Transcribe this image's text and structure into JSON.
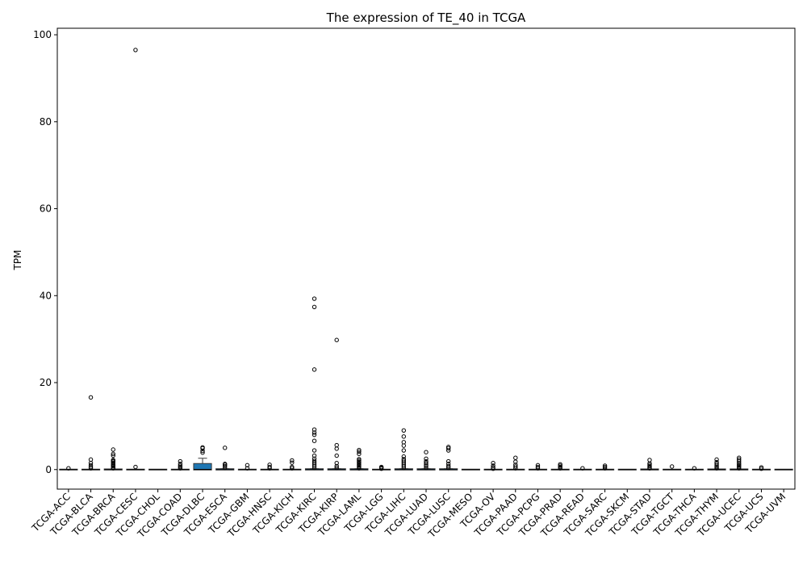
{
  "chart_data": {
    "type": "box",
    "title": "The expression of TE_40 in TCGA",
    "xlabel": "",
    "ylabel": "TPM",
    "ylim": [
      -4.5,
      101.5
    ],
    "yticks": [
      0,
      20,
      40,
      60,
      80,
      100
    ],
    "grid": false,
    "legend": "none",
    "categories": [
      "TCGA-ACC",
      "TCGA-BLCA",
      "TCGA-BRCA",
      "TCGA-CESC",
      "TCGA-CHOL",
      "TCGA-COAD",
      "TCGA-DLBC",
      "TCGA-ESCA",
      "TCGA-GBM",
      "TCGA-HNSC",
      "TCGA-KICH",
      "TCGA-KIRC",
      "TCGA-KIRP",
      "TCGA-LAML",
      "TCGA-LGG",
      "TCGA-LIHC",
      "TCGA-LUAD",
      "TCGA-LUSC",
      "TCGA-MESO",
      "TCGA-OV",
      "TCGA-PAAD",
      "TCGA-PCPG",
      "TCGA-PRAD",
      "TCGA-READ",
      "TCGA-SARC",
      "TCGA-SKCM",
      "TCGA-STAD",
      "TCGA-TGCT",
      "TCGA-THCA",
      "TCGA-THYM",
      "TCGA-UCEC",
      "TCGA-UCS",
      "TCGA-UVM"
    ],
    "boxes": [
      {
        "q1": 0,
        "median": 0,
        "q3": 0,
        "whislo": 0,
        "whishi": 0,
        "fliers": [
          0.3
        ]
      },
      {
        "q1": 0,
        "median": 0,
        "q3": 0,
        "whislo": 0,
        "whishi": 0,
        "fliers": [
          0.3,
          0.6,
          1.0,
          1.5,
          2.3,
          16.6
        ]
      },
      {
        "q1": 0,
        "median": 0,
        "q3": 0.05,
        "whislo": 0,
        "whishi": 0.1,
        "fliers": [
          0.3,
          0.5,
          0.8,
          1.0,
          1.2,
          1.5,
          1.8,
          2.0,
          2.2,
          3.2,
          3.6,
          4.6
        ]
      },
      {
        "q1": 0,
        "median": 0,
        "q3": 0,
        "whislo": 0,
        "whishi": 0,
        "fliers": [
          0.6,
          96.5
        ]
      },
      {
        "q1": 0,
        "median": 0,
        "q3": 0,
        "whislo": 0,
        "whishi": 0,
        "fliers": []
      },
      {
        "q1": 0,
        "median": 0,
        "q3": 0,
        "whislo": 0,
        "whishi": 0,
        "fliers": [
          0.3,
          0.6,
          0.9,
          1.3,
          1.9
        ]
      },
      {
        "q1": 0,
        "median": 0.05,
        "q3": 1.3,
        "whislo": 0,
        "whishi": 2.6,
        "fliers": [
          3.9,
          4.3,
          4.9,
          5.1
        ]
      },
      {
        "q1": 0,
        "median": 0,
        "q3": 0.1,
        "whislo": 0,
        "whishi": 0.2,
        "fliers": [
          0.4,
          0.8,
          1.1,
          1.3,
          5.0
        ]
      },
      {
        "q1": 0,
        "median": 0,
        "q3": 0,
        "whislo": 0,
        "whishi": 0,
        "fliers": [
          0.3,
          1.0
        ]
      },
      {
        "q1": 0,
        "median": 0,
        "q3": 0,
        "whislo": 0,
        "whishi": 0,
        "fliers": [
          0.3,
          0.6,
          1.1
        ]
      },
      {
        "q1": 0,
        "median": 0,
        "q3": 0,
        "whislo": 0,
        "whishi": 0,
        "fliers": [
          0.3,
          0.6,
          1.6,
          2.1
        ]
      },
      {
        "q1": 0,
        "median": 0,
        "q3": 0.1,
        "whislo": 0,
        "whishi": 0.2,
        "fliers": [
          0.4,
          0.8,
          1.2,
          1.6,
          2.0,
          2.5,
          3.2,
          4.4,
          6.6,
          8.0,
          8.5,
          9.2,
          23.0,
          37.4,
          39.3
        ]
      },
      {
        "q1": 0,
        "median": 0,
        "q3": 0.1,
        "whislo": 0,
        "whishi": 0.2,
        "fliers": [
          0.4,
          0.8,
          1.5,
          3.2,
          4.8,
          5.6,
          29.8
        ]
      },
      {
        "q1": 0,
        "median": 0,
        "q3": 0.1,
        "whislo": 0,
        "whishi": 0.2,
        "fliers": [
          0.3,
          0.6,
          0.9,
          1.2,
          1.5,
          1.8,
          2.1,
          2.4,
          3.6,
          4.1,
          4.5
        ]
      },
      {
        "q1": 0,
        "median": 0,
        "q3": 0,
        "whislo": 0,
        "whishi": 0,
        "fliers": [
          0.2,
          0.4,
          0.6
        ]
      },
      {
        "q1": 0,
        "median": 0,
        "q3": 0.1,
        "whislo": 0,
        "whishi": 0.2,
        "fliers": [
          0.4,
          0.8,
          1.2,
          1.6,
          2.0,
          2.4,
          3.0,
          4.4,
          5.5,
          6.3,
          7.6,
          9.0
        ]
      },
      {
        "q1": 0,
        "median": 0,
        "q3": 0.1,
        "whislo": 0,
        "whishi": 0.2,
        "fliers": [
          0.4,
          0.8,
          1.1,
          1.5,
          1.9,
          2.5,
          4.0
        ]
      },
      {
        "q1": 0,
        "median": 0,
        "q3": 0.1,
        "whislo": 0,
        "whishi": 0.2,
        "fliers": [
          0.4,
          0.8,
          1.3,
          1.9,
          4.4,
          4.9,
          5.2
        ]
      },
      {
        "q1": 0,
        "median": 0,
        "q3": 0,
        "whislo": 0,
        "whishi": 0,
        "fliers": []
      },
      {
        "q1": 0,
        "median": 0,
        "q3": 0,
        "whislo": 0,
        "whishi": 0,
        "fliers": [
          0.2,
          0.5,
          0.9,
          1.5
        ]
      },
      {
        "q1": 0,
        "median": 0,
        "q3": 0,
        "whislo": 0,
        "whishi": 0,
        "fliers": [
          0.3,
          0.7,
          1.1,
          1.8,
          2.7
        ]
      },
      {
        "q1": 0,
        "median": 0,
        "q3": 0,
        "whislo": 0,
        "whishi": 0,
        "fliers": [
          0.3,
          0.6,
          1.0
        ]
      },
      {
        "q1": 0,
        "median": 0,
        "q3": 0,
        "whislo": 0,
        "whishi": 0,
        "fliers": [
          0.3,
          0.6,
          0.9,
          1.2
        ]
      },
      {
        "q1": 0,
        "median": 0,
        "q3": 0,
        "whislo": 0,
        "whishi": 0,
        "fliers": [
          0.3
        ]
      },
      {
        "q1": 0,
        "median": 0,
        "q3": 0,
        "whislo": 0,
        "whishi": 0,
        "fliers": [
          0.3,
          0.6,
          0.9
        ]
      },
      {
        "q1": 0,
        "median": 0,
        "q3": 0,
        "whislo": 0,
        "whishi": 0,
        "fliers": []
      },
      {
        "q1": 0,
        "median": 0,
        "q3": 0.05,
        "whislo": 0,
        "whishi": 0.1,
        "fliers": [
          0.3,
          0.5,
          0.8,
          1.1,
          1.4,
          2.2
        ]
      },
      {
        "q1": 0,
        "median": 0,
        "q3": 0,
        "whislo": 0,
        "whishi": 0,
        "fliers": [
          0.7
        ]
      },
      {
        "q1": 0,
        "median": 0,
        "q3": 0,
        "whislo": 0,
        "whishi": 0,
        "fliers": [
          0.3
        ]
      },
      {
        "q1": 0,
        "median": 0,
        "q3": 0.05,
        "whislo": 0,
        "whishi": 0.1,
        "fliers": [
          0.3,
          0.6,
          0.9,
          1.3,
          1.7,
          2.3
        ]
      },
      {
        "q1": 0,
        "median": 0,
        "q3": 0.05,
        "whislo": 0,
        "whishi": 0.1,
        "fliers": [
          0.3,
          0.6,
          0.9,
          1.2,
          1.5,
          1.9,
          2.3,
          2.7
        ]
      },
      {
        "q1": 0,
        "median": 0,
        "q3": 0,
        "whislo": 0,
        "whishi": 0,
        "fliers": [
          0.2,
          0.5
        ]
      },
      {
        "q1": 0,
        "median": 0,
        "q3": 0,
        "whislo": 0,
        "whishi": 0,
        "fliers": []
      }
    ],
    "box_color": "#1f77b4",
    "median_color": "#000000"
  }
}
